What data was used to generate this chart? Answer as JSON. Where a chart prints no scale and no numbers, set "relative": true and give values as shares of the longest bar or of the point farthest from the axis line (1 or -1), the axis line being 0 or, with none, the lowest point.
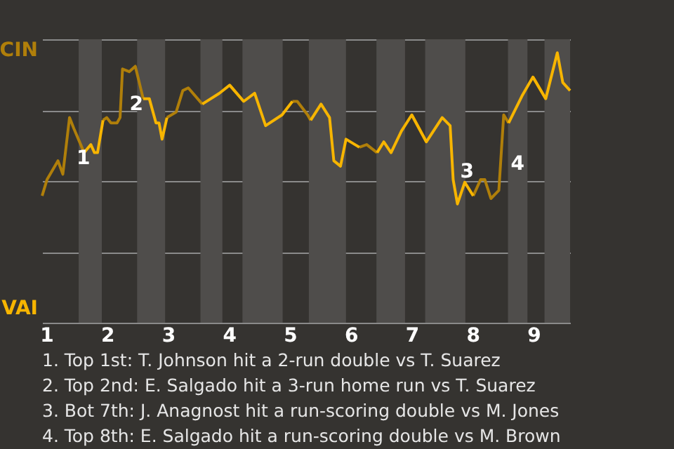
{
  "chart_data": {
    "type": "line",
    "marker": "none",
    "line_style": "solid",
    "grid": "y",
    "relative": true,
    "x": [
      0.93,
      1.01,
      1.19,
      1.27,
      1.38,
      1.45,
      1.62,
      1.73,
      1.79,
      1.84,
      1.93,
      1.99,
      2.06,
      2.16,
      2.21,
      2.25,
      2.36,
      2.46,
      2.59,
      2.69,
      2.8,
      2.85,
      2.9,
      2.98,
      3.13,
      3.24,
      3.33,
      3.56,
      3.84,
      4.01,
      4.24,
      4.42,
      4.6,
      4.87,
      5.04,
      5.12,
      5.29,
      5.34,
      5.51,
      5.65,
      5.72,
      5.83,
      5.92,
      6.14,
      6.26,
      6.43,
      6.54,
      6.66,
      6.83,
      7.0,
      7.24,
      7.5,
      7.63,
      7.68,
      7.75,
      7.87,
      8.01,
      8.13,
      8.2,
      8.3,
      8.43,
      8.51,
      8.59,
      8.81,
      8.99,
      9.2,
      9.39,
      9.48,
      9.6
    ],
    "series": [
      {
        "color": "#b07f0a",
        "values": [
          0.47,
          0.53,
          0.6,
          0.55,
          0.76,
          0.72,
          0.63,
          null,
          null,
          null,
          0.75,
          0.76,
          0.74,
          0.74,
          0.76,
          0.94,
          0.93,
          0.95,
          0.83,
          null,
          null,
          null,
          null,
          0.76,
          0.78,
          0.86,
          0.87,
          0.81,
          null,
          0.88,
          0.82,
          null,
          null,
          null,
          0.82,
          0.82,
          0.77,
          0.75,
          null,
          null,
          null,
          null,
          null,
          0.65,
          0.66,
          0.63,
          null,
          null,
          null,
          0.77,
          0.67,
          null,
          null,
          null,
          null,
          null,
          0.47,
          0.53,
          0.53,
          0.46,
          0.49,
          0.77,
          0.74,
          null,
          0.91,
          0.83,
          null,
          null,
          null
        ]
      },
      {
        "color": "#f7b500",
        "values": [
          null,
          null,
          null,
          null,
          null,
          null,
          0.63,
          0.66,
          0.63,
          0.63,
          0.75,
          null,
          null,
          null,
          null,
          null,
          null,
          null,
          0.83,
          0.83,
          0.74,
          0.74,
          0.68,
          0.76,
          null,
          null,
          null,
          0.81,
          0.85,
          0.88,
          0.82,
          0.85,
          0.73,
          0.77,
          0.82,
          null,
          null,
          0.75,
          0.81,
          0.76,
          0.6,
          0.58,
          0.68,
          0.65,
          null,
          0.63,
          0.67,
          0.63,
          0.71,
          0.77,
          0.67,
          0.76,
          0.73,
          0.53,
          0.44,
          0.52,
          0.47,
          null,
          null,
          null,
          null,
          null,
          0.74,
          0.84,
          0.91,
          0.83,
          1,
          0.89,
          0.86
        ]
      }
    ],
    "xlim": [
      0.93,
      9.6
    ],
    "xticks": [
      1,
      2,
      3,
      4,
      5,
      6,
      7,
      8,
      9
    ],
    "bands": [
      {
        "axis": "x",
        "from": 1.53,
        "to": 1.91,
        "color": "#4f4d4b"
      },
      {
        "axis": "x",
        "from": 2.49,
        "to": 2.95,
        "color": "#4f4d4b"
      },
      {
        "axis": "x",
        "from": 3.53,
        "to": 3.89,
        "color": "#4f4d4b"
      },
      {
        "axis": "x",
        "from": 4.22,
        "to": 4.88,
        "color": "#4f4d4b"
      },
      {
        "axis": "x",
        "from": 5.31,
        "to": 5.92,
        "color": "#4f4d4b"
      },
      {
        "axis": "x",
        "from": 6.42,
        "to": 6.89,
        "color": "#4f4d4b"
      },
      {
        "axis": "x",
        "from": 7.22,
        "to": 7.88,
        "color": "#4f4d4b"
      },
      {
        "axis": "x",
        "from": 8.58,
        "to": 8.9,
        "color": "#4f4d4b"
      },
      {
        "axis": "x",
        "from": 9.18,
        "to": 9.6,
        "color": "#4f4d4b"
      }
    ],
    "annotations": [
      "CIN",
      "VAI",
      {
        "text": "1",
        "x": 1.38,
        "y": 0.65
      },
      {
        "text": "2",
        "x": 2.25,
        "y": 0.85
      },
      {
        "text": "3",
        "x": 7.68,
        "y": 0.6
      },
      {
        "text": "4",
        "x": 8.51,
        "y": 0.63
      },
      "1. Top 1st: T. Johnson hit a 2-run double vs T. Suarez",
      "2. Top 2nd: E. Salgado hit a 3-run home run vs T. Suarez",
      "3. Bot 7th: J. Anagnost hit a run-scoring double vs M. Jones",
      "4. Top 8th: E. Salgado hit a run-scoring double vs M. Brown"
    ]
  }
}
